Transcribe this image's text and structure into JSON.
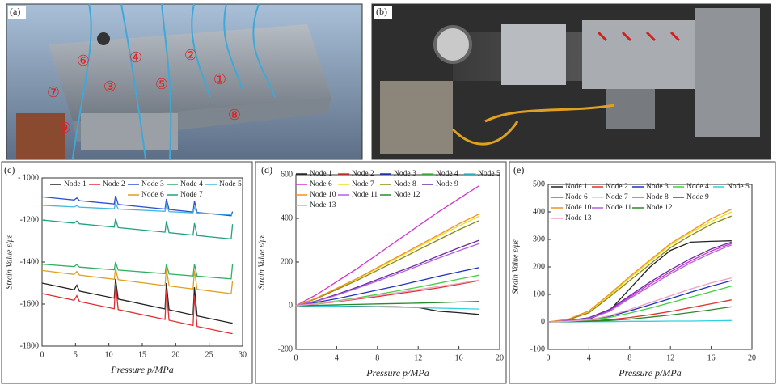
{
  "photos": [
    {
      "label": "(a)",
      "annotations": [
        "⑥",
        "④",
        "②",
        "⑦",
        "③",
        "⑤",
        "①",
        "⑧",
        "⑨"
      ]
    },
    {
      "label": "(b)"
    }
  ],
  "chart_data": [
    {
      "type": "line",
      "label": "(c)",
      "xlabel": "Pressure p/MPa",
      "ylabel": "Strain Value ε/με",
      "x": [
        0,
        4.8,
        5.2,
        5.6,
        10.8,
        11,
        11.4,
        18.4,
        18.6,
        19,
        22.6,
        22.8,
        23.2,
        28.3,
        28.5
      ],
      "xlim": [
        0,
        30
      ],
      "xticks": [
        0,
        5,
        10,
        15,
        20,
        25,
        30
      ],
      "ylim": [
        -1800,
        -1000
      ],
      "yticks": [
        {
          "value": -1000,
          "label": "- 1000"
        },
        -1200,
        -1400,
        -1600,
        -1800
      ],
      "series": [
        {
          "name": "Node 1",
          "color": "#222222",
          "values": [
            -1500,
            -1532,
            -1510,
            -1538,
            -1572,
            -1480,
            -1576,
            -1623,
            -1500,
            -1627,
            -1652,
            -1520,
            -1656,
            -1690,
            -1690
          ]
        },
        {
          "name": "Node 2",
          "color": "#e03030",
          "values": [
            -1550,
            -1582,
            -1560,
            -1588,
            -1622,
            -1500,
            -1626,
            -1673,
            -1530,
            -1677,
            -1702,
            -1560,
            -1706,
            -1740,
            -1740
          ]
        },
        {
          "name": "Node 3",
          "color": "#3050d0",
          "values": [
            -1090,
            -1105,
            -1095,
            -1108,
            -1124,
            -1085,
            -1126,
            -1148,
            -1100,
            -1150,
            -1162,
            -1110,
            -1164,
            -1180,
            -1160
          ]
        },
        {
          "name": "Node 4",
          "color": "#30b060",
          "values": [
            -1410,
            -1422,
            -1412,
            -1424,
            -1437,
            -1400,
            -1438,
            -1455,
            -1410,
            -1457,
            -1466,
            -1410,
            -1467,
            -1480,
            -1410
          ]
        },
        {
          "name": "Node 5",
          "color": "#40b8e0",
          "values": [
            -1130,
            -1138,
            -1132,
            -1139,
            -1147,
            -1120,
            -1148,
            -1159,
            -1130,
            -1160,
            -1166,
            -1140,
            -1167,
            -1175,
            -1170
          ]
        },
        {
          "name": "Node 6",
          "color": "#e0a020",
          "values": [
            -1440,
            -1459,
            -1445,
            -1462,
            -1482,
            -1430,
            -1484,
            -1512,
            -1430,
            -1514,
            -1528,
            -1440,
            -1530,
            -1550,
            -1490
          ]
        },
        {
          "name": "Node 7",
          "color": "#20a080",
          "values": [
            -1200,
            -1215,
            -1205,
            -1218,
            -1234,
            -1195,
            -1236,
            -1258,
            -1205,
            -1260,
            -1272,
            -1215,
            -1274,
            -1290,
            -1220
          ]
        }
      ]
    },
    {
      "type": "line",
      "label": "(d)",
      "xlabel": "Pressure p/MPa",
      "ylabel": "Strain Value ε/με",
      "x": [
        0,
        2,
        4,
        6,
        8,
        10,
        12,
        14,
        16,
        18
      ],
      "xlim": [
        0,
        20
      ],
      "xticks": [
        0,
        4,
        8,
        12,
        16,
        20
      ],
      "ylim": [
        -200,
        600
      ],
      "yticks": [
        -200,
        0,
        200,
        400,
        600
      ],
      "series": [
        {
          "name": "Node 1",
          "color": "#222222",
          "values": [
            0,
            -1,
            -2,
            -3,
            -4,
            -5,
            -8,
            -25,
            -32,
            -40
          ]
        },
        {
          "name": "Node 2",
          "color": "#e03030",
          "values": [
            0,
            8,
            18,
            30,
            42,
            55,
            68,
            82,
            98,
            115
          ]
        },
        {
          "name": "Node 3",
          "color": "#2030c0",
          "values": [
            0,
            15,
            32,
            52,
            72,
            92,
            113,
            135,
            155,
            175
          ]
        },
        {
          "name": "Node 4",
          "color": "#40d040",
          "values": [
            0,
            10,
            22,
            36,
            52,
            68,
            85,
            103,
            122,
            140
          ]
        },
        {
          "name": "Node 5",
          "color": "#30d0e0",
          "values": [
            0,
            -1,
            -2,
            -4,
            -5,
            -7,
            -9,
            -11,
            -13,
            -15
          ]
        },
        {
          "name": "Node 6",
          "color": "#d030d0",
          "values": [
            0,
            50,
            110,
            170,
            235,
            300,
            365,
            430,
            490,
            550
          ]
        },
        {
          "name": "Node 7",
          "color": "#e8e020",
          "values": [
            0,
            35,
            78,
            122,
            170,
            220,
            268,
            318,
            365,
            410
          ]
        },
        {
          "name": "Node 8",
          "color": "#8a8a10",
          "values": [
            0,
            32,
            74,
            116,
            162,
            208,
            255,
            302,
            348,
            390
          ]
        },
        {
          "name": "Node 9",
          "color": "#6a2aa0",
          "values": [
            0,
            22,
            52,
            85,
            120,
            155,
            190,
            228,
            265,
            300
          ]
        },
        {
          "name": "Node 10",
          "color": "#f09020",
          "values": [
            0,
            35,
            80,
            125,
            175,
            225,
            275,
            325,
            375,
            420
          ]
        },
        {
          "name": "Node 11",
          "color": "#b060e0",
          "values": [
            0,
            20,
            48,
            80,
            113,
            147,
            182,
            218,
            252,
            285
          ]
        },
        {
          "name": "Node 12",
          "color": "#2a8a2a",
          "values": [
            0,
            2,
            4,
            6,
            8,
            10,
            12,
            14,
            17,
            20
          ]
        },
        {
          "name": "Node 13",
          "color": "#f0a0c0",
          "values": [
            0,
            9,
            20,
            33,
            46,
            60,
            74,
            88,
            102,
            118
          ]
        }
      ]
    },
    {
      "type": "line",
      "label": "(e)",
      "xlabel": "Pressure p/MPa",
      "ylabel": "Strain Value ε/με",
      "x": [
        0,
        2,
        4,
        6,
        8,
        10,
        12,
        14,
        16,
        18
      ],
      "xlim": [
        0,
        20
      ],
      "xticks": [
        0,
        4,
        8,
        12,
        16,
        20
      ],
      "ylim": [
        -100,
        500
      ],
      "yticks": [
        -100,
        0,
        100,
        200,
        300,
        400,
        500
      ],
      "series": [
        {
          "name": "Node 1",
          "color": "#222222",
          "values": [
            0,
            3,
            10,
            40,
            120,
            200,
            260,
            290,
            293,
            295
          ]
        },
        {
          "name": "Node 2",
          "color": "#e03030",
          "values": [
            0,
            1,
            3,
            8,
            16,
            26,
            38,
            52,
            66,
            80
          ]
        },
        {
          "name": "Node 3",
          "color": "#2030c0",
          "values": [
            0,
            2,
            7,
            20,
            40,
            62,
            85,
            108,
            130,
            150
          ]
        },
        {
          "name": "Node 4",
          "color": "#40d040",
          "values": [
            0,
            2,
            6,
            16,
            32,
            50,
            70,
            90,
            110,
            130
          ]
        },
        {
          "name": "Node 5",
          "color": "#30d0e0",
          "values": [
            0,
            0,
            1,
            1,
            2,
            2,
            3,
            3,
            4,
            5
          ]
        },
        {
          "name": "Node 6",
          "color": "#d030d0",
          "values": [
            0,
            4,
            14,
            42,
            90,
            138,
            182,
            222,
            258,
            285
          ]
        },
        {
          "name": "Node 7",
          "color": "#e8e020",
          "values": [
            0,
            8,
            35,
            95,
            160,
            220,
            280,
            325,
            365,
            400
          ]
        },
        {
          "name": "Node 8",
          "color": "#8a8a10",
          "values": [
            0,
            8,
            33,
            90,
            150,
            210,
            270,
            315,
            355,
            385
          ]
        },
        {
          "name": "Node 9",
          "color": "#6a2aa0",
          "values": [
            0,
            5,
            15,
            45,
            95,
            145,
            190,
            230,
            265,
            290
          ]
        },
        {
          "name": "Node 10",
          "color": "#f09020",
          "values": [
            0,
            10,
            40,
            100,
            165,
            225,
            285,
            330,
            375,
            410
          ]
        },
        {
          "name": "Node 11",
          "color": "#b060e0",
          "values": [
            0,
            4,
            12,
            38,
            85,
            130,
            175,
            215,
            250,
            280
          ]
        },
        {
          "name": "Node 12",
          "color": "#2a8a2a",
          "values": [
            0,
            1,
            2,
            5,
            10,
            17,
            25,
            34,
            44,
            55
          ]
        },
        {
          "name": "Node 13",
          "color": "#f0a0c0",
          "values": [
            0,
            2,
            8,
            22,
            45,
            70,
            95,
            120,
            142,
            160
          ]
        }
      ]
    }
  ]
}
